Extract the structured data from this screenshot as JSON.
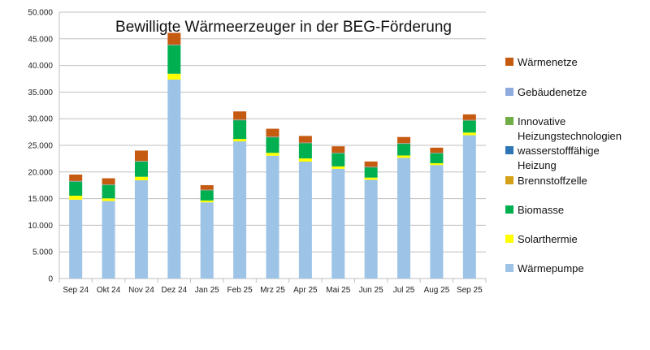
{
  "chart_data": {
    "type": "bar",
    "stacked": true,
    "title": "Bewilligte Wärmeerzeuger in der BEG-Förderung",
    "xlabel": "",
    "ylabel": "",
    "ylim": [
      0,
      50000
    ],
    "yticks": [
      "0",
      "5.000",
      "10.000",
      "15.000",
      "20.000",
      "25.000",
      "30.000",
      "35.000",
      "40.000",
      "45.000",
      "50.000"
    ],
    "grid": true,
    "legend_position": "right",
    "categories": [
      "Sep 24",
      "Okt 24",
      "Nov 24",
      "Dez 24",
      "Jan 25",
      "Feb 25",
      "Mrz 25",
      "Apr 25",
      "Mai 25",
      "Jun 25",
      "Jul 25",
      "Aug 25",
      "Sep 25"
    ],
    "series": [
      {
        "name": "Wärmepumpe",
        "color": "#9dc3e6",
        "values": [
          14800,
          14550,
          18450,
          37350,
          14300,
          25750,
          23050,
          21950,
          20600,
          18550,
          22650,
          21300,
          26900
        ]
      },
      {
        "name": "Solarthermie",
        "color": "#ffff00",
        "values": [
          750,
          500,
          650,
          1100,
          350,
          450,
          550,
          600,
          450,
          400,
          450,
          350,
          500
        ]
      },
      {
        "name": "Biomasse",
        "color": "#00b050",
        "values": [
          2650,
          2500,
          2850,
          5350,
          1900,
          3500,
          2900,
          2850,
          2450,
          1900,
          2200,
          1850,
          2250
        ]
      },
      {
        "name": "Brennstoffzelle",
        "color": "#d4a017",
        "values": [
          10,
          10,
          10,
          10,
          10,
          10,
          10,
          10,
          10,
          10,
          10,
          10,
          10
        ]
      },
      {
        "name": "wasserstofffähige Heizung",
        "color": "#2e75b6",
        "values": [
          10,
          10,
          10,
          10,
          10,
          10,
          10,
          10,
          10,
          10,
          10,
          10,
          10
        ]
      },
      {
        "name": "Innovative Heizungstechnologien",
        "color": "#70ad47",
        "values": [
          40,
          40,
          40,
          40,
          40,
          40,
          40,
          40,
          40,
          40,
          40,
          40,
          40
        ]
      },
      {
        "name": "Gebäudenetze",
        "color": "#8faadc",
        "values": [
          60,
          60,
          60,
          60,
          60,
          60,
          60,
          60,
          60,
          60,
          60,
          60,
          60
        ]
      },
      {
        "name": "Wärmenetze",
        "color": "#c55a11",
        "values": [
          1200,
          1150,
          1950,
          2200,
          850,
          1550,
          1500,
          1250,
          1200,
          1000,
          1150,
          950,
          1050
        ]
      }
    ],
    "legend": [
      {
        "label": "Wärmenetze",
        "color": "#c55a11"
      },
      {
        "label": "Gebäudenetze",
        "color": "#8faadc"
      },
      {
        "label": "Innovative Heizungstechnologien",
        "lines": [
          "Innovative",
          "Heizungstechnologien"
        ],
        "color": "#70ad47"
      },
      {
        "label": "wasserstofffähige Heizung",
        "lines": [
          "wasserstofffähige",
          "Heizung"
        ],
        "color": "#2e75b6"
      },
      {
        "label": "Brennstoffzelle",
        "color": "#d4a017"
      },
      {
        "label": "Biomasse",
        "color": "#00b050"
      },
      {
        "label": "Solarthermie",
        "color": "#ffff00"
      },
      {
        "label": "Wärmepumpe",
        "color": "#9dc3e6"
      }
    ]
  }
}
